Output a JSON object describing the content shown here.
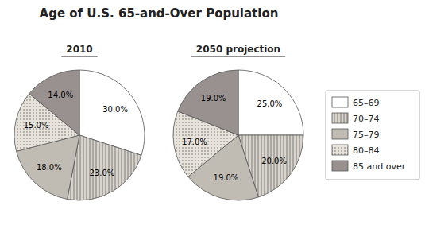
{
  "chart_data": {
    "type": "pie",
    "title": "Age of U.S. 65-and-Over Population",
    "categories": [
      "65–69",
      "70–74",
      "75–79",
      "80–84",
      "85 and over"
    ],
    "colors": [
      "#ffffff",
      "#d8d4cc",
      "#c0bcb4",
      "#e8e4dc",
      "#999090"
    ],
    "series": [
      {
        "name": "2010",
        "values": [
          30.0,
          23.0,
          18.0,
          15.0,
          14.0
        ],
        "value_labels": [
          "30.0%",
          "23.0%",
          "18.0%",
          "15.0%",
          "14.0%"
        ]
      },
      {
        "name": "2050 projection",
        "values": [
          25.0,
          20.0,
          19.0,
          17.0,
          19.0
        ],
        "value_labels": [
          "25.0%",
          "20.0%",
          "19.0%",
          "17.0%",
          "19.0%"
        ]
      }
    ],
    "data_labels": true,
    "legend": "right"
  }
}
